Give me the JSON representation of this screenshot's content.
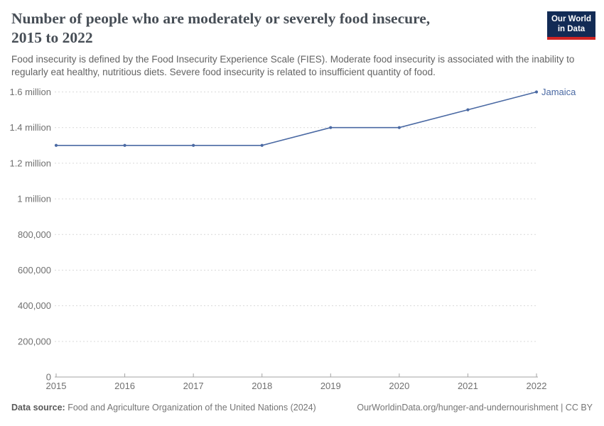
{
  "header": {
    "title_line1": "Number of people who are moderately or severely food insecure,",
    "title_line2": "2015 to 2022",
    "subtitle": "Food insecurity is defined by the Food Insecurity Experience Scale (FIES). Moderate food insecurity is associated with the inability to regularly eat healthy, nutritious diets. Severe food insecurity is related to insufficient quantity of food."
  },
  "logo": {
    "line1": "Our World",
    "line2": "in Data",
    "background": "#122b55",
    "accent": "#cf2423"
  },
  "chart_data": {
    "type": "line",
    "title": "Number of people who are moderately or severely food insecure, 2015 to 2022",
    "x": [
      2015,
      2016,
      2017,
      2018,
      2019,
      2020,
      2021,
      2022
    ],
    "series": [
      {
        "name": "Jamaica",
        "color": "#4a69a3",
        "values": [
          1300000,
          1300000,
          1300000,
          1300000,
          1400000,
          1400000,
          1500000,
          1600000
        ]
      }
    ],
    "xlabel": "",
    "ylabel": "",
    "ylim": [
      0,
      1600000
    ],
    "grid": true,
    "gridlines_dashed": true,
    "legend_position": "end-of-line",
    "yticks": [
      {
        "value": 0,
        "label": "0"
      },
      {
        "value": 200000,
        "label": "200,000"
      },
      {
        "value": 400000,
        "label": "400,000"
      },
      {
        "value": 600000,
        "label": "600,000"
      },
      {
        "value": 800000,
        "label": "800,000"
      },
      {
        "value": 1000000,
        "label": "1 million"
      },
      {
        "value": 1200000,
        "label": "1.2 million"
      },
      {
        "value": 1400000,
        "label": "1.4 million"
      },
      {
        "value": 1600000,
        "label": "1.6 million"
      }
    ]
  },
  "footer": {
    "source_label": "Data source:",
    "source_text": " Food and Agriculture Organization of the United Nations (2024)",
    "license": "OurWorldinData.org/hunger-and-undernourishment | CC BY"
  }
}
